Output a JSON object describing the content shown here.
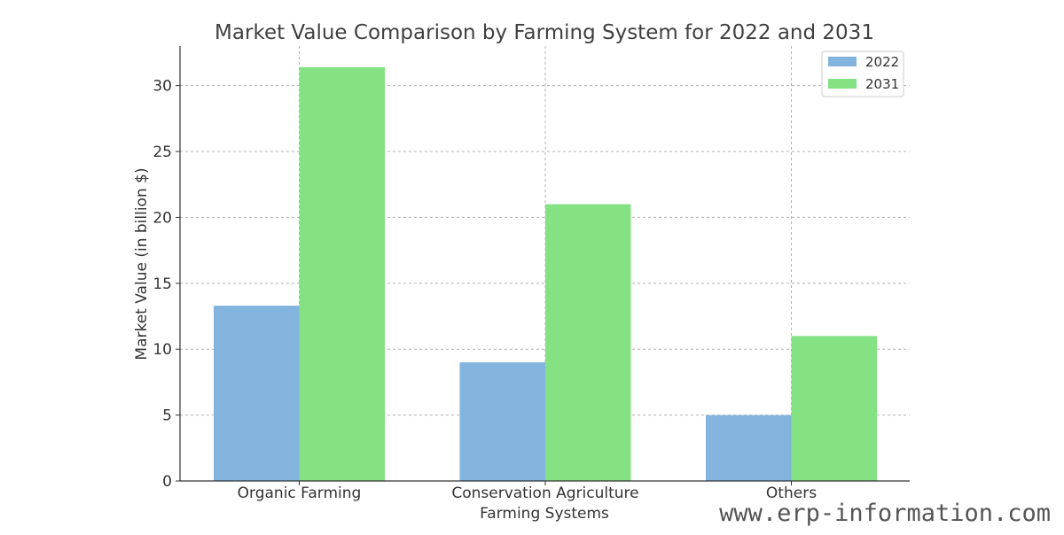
{
  "chart_data": {
    "type": "bar",
    "title": "Market Value Comparison by Farming System for 2022 and 2031",
    "xlabel": "Farming Systems",
    "ylabel": "Market Value (in billion $)",
    "categories": [
      "Organic Farming",
      "Conservation Agriculture",
      "Others"
    ],
    "series": [
      {
        "name": "2022",
        "values": [
          13.3,
          9.0,
          5.0
        ],
        "color": "#82b4de"
      },
      {
        "name": "2031",
        "values": [
          31.4,
          21.0,
          11.0
        ],
        "color": "#84e184"
      }
    ],
    "ylim": [
      0,
      33
    ],
    "yticks": [
      "0",
      "5",
      "10",
      "15",
      "20",
      "25",
      "30"
    ],
    "grid": true,
    "legend_position": "top-right"
  },
  "watermark": "www.erp-information.com"
}
